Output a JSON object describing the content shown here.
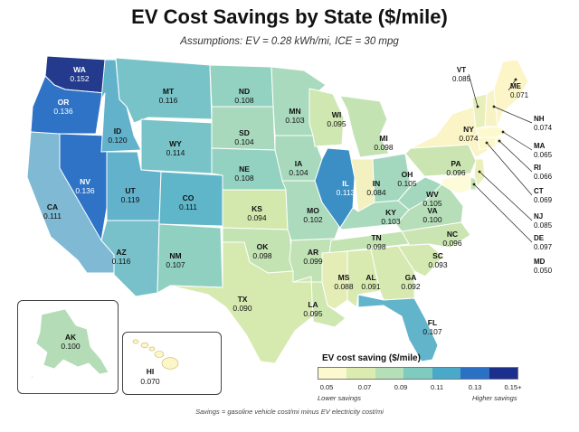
{
  "title": "EV Cost Savings by State ($/mile)",
  "subtitle": "Assumptions: EV = 0.28 kWh/mi, ICE = 30 mpg",
  "footnote": "Savings = gasoline vehicle cost/mi minus EV electricity cost/mi",
  "legend": {
    "title": "EV cost saving ($/mile)",
    "ticks": [
      "0.05",
      "0.07",
      "0.09",
      "0.11",
      "0.13",
      "0.15+"
    ],
    "colors": [
      "#fdf9cf",
      "#dcecb0",
      "#b5dfb6",
      "#7fcbc0",
      "#4aa9c8",
      "#2a70c4",
      "#1b2f8c"
    ],
    "low_label": "Lower savings",
    "high_label": "Higher savings"
  },
  "states": [
    {
      "abbr": "WA",
      "value": "0.152",
      "color": "#233a8d"
    },
    {
      "abbr": "OR",
      "value": "0.136",
      "color": "#2f73c6"
    },
    {
      "abbr": "CA",
      "value": "0.111",
      "color": "#7fb9d3"
    },
    {
      "abbr": "NV",
      "value": "0.136",
      "color": "#2f73c6"
    },
    {
      "abbr": "ID",
      "value": "0.120",
      "color": "#62b2cc"
    },
    {
      "abbr": "MT",
      "value": "0.116",
      "color": "#78c3c8"
    },
    {
      "abbr": "WY",
      "value": "0.114",
      "color": "#78c3c8"
    },
    {
      "abbr": "UT",
      "value": "0.119",
      "color": "#62b2cc"
    },
    {
      "abbr": "AZ",
      "value": "0.116",
      "color": "#78c0ca"
    },
    {
      "abbr": "CO",
      "value": "0.111",
      "color": "#5fb6c8"
    },
    {
      "abbr": "NM",
      "value": "0.107",
      "color": "#90d0c0"
    },
    {
      "abbr": "ND",
      "value": "0.108",
      "color": "#93d2c0"
    },
    {
      "abbr": "SD",
      "value": "0.104",
      "color": "#a8d9bd"
    },
    {
      "abbr": "NE",
      "value": "0.108",
      "color": "#93d2c0"
    },
    {
      "abbr": "KS",
      "value": "0.094",
      "color": "#d3e8ad"
    },
    {
      "abbr": "OK",
      "value": "0.098",
      "color": "#c4e3b3"
    },
    {
      "abbr": "TX",
      "value": "0.090",
      "color": "#d6eab0"
    },
    {
      "abbr": "MN",
      "value": "0.103",
      "color": "#a9dabd"
    },
    {
      "abbr": "IA",
      "value": "0.104",
      "color": "#a8d9bd"
    },
    {
      "abbr": "MO",
      "value": "0.102",
      "color": "#acdabc"
    },
    {
      "abbr": "AR",
      "value": "0.099",
      "color": "#c0e2b5"
    },
    {
      "abbr": "LA",
      "value": "0.095",
      "color": "#cfe7b0"
    },
    {
      "abbr": "WI",
      "value": "0.095",
      "color": "#cfe7b0"
    },
    {
      "abbr": "IL",
      "value": "0.113",
      "color": "#3c8fc4"
    },
    {
      "abbr": "MI",
      "value": "0.098",
      "color": "#c4e3b3"
    },
    {
      "abbr": "IN",
      "value": "0.084",
      "color": "#f3f1c0"
    },
    {
      "abbr": "OH",
      "value": "0.105",
      "color": "#a3d8be"
    },
    {
      "abbr": "KY",
      "value": "0.103",
      "color": "#a9dabd"
    },
    {
      "abbr": "TN",
      "value": "0.098",
      "color": "#c4e3b3"
    },
    {
      "abbr": "MS",
      "value": "0.088",
      "color": "#e4edb6"
    },
    {
      "abbr": "AL",
      "value": "0.091",
      "color": "#d8eab0"
    },
    {
      "abbr": "GA",
      "value": "0.092",
      "color": "#d6e9b1"
    },
    {
      "abbr": "FL",
      "value": "0.107",
      "color": "#62b4cb"
    },
    {
      "abbr": "SC",
      "value": "0.093",
      "color": "#d4e9b1"
    },
    {
      "abbr": "NC",
      "value": "0.096",
      "color": "#cbe5b2"
    },
    {
      "abbr": "VA",
      "value": "0.100",
      "color": "#b6deb8"
    },
    {
      "abbr": "WV",
      "value": "0.105",
      "color": "#a3d8be"
    },
    {
      "abbr": "PA",
      "value": "0.096",
      "color": "#cbe5b2"
    },
    {
      "abbr": "NY",
      "value": "0.074",
      "color": "#fbf4c6"
    },
    {
      "abbr": "VT",
      "value": "0.085",
      "color": "#e8efbc"
    },
    {
      "abbr": "ME",
      "value": "0.071",
      "color": "#fcf5c7"
    },
    {
      "abbr": "NH",
      "value": "0.074",
      "color": "#f8f3c5"
    },
    {
      "abbr": "MA",
      "value": "0.065",
      "color": "#fdf9cf"
    },
    {
      "abbr": "RI",
      "value": "0.066",
      "color": "#fdf9cf"
    },
    {
      "abbr": "CT",
      "value": "0.069",
      "color": "#fdf8cb"
    },
    {
      "abbr": "NJ",
      "value": "0.085",
      "color": "#eaefbb"
    },
    {
      "abbr": "DE",
      "value": "0.097",
      "color": "#c8e4b2"
    },
    {
      "abbr": "MD",
      "value": "0.050",
      "color": "#fefbd8"
    },
    {
      "abbr": "AK",
      "value": "0.100",
      "color": "#b4dcb6"
    },
    {
      "abbr": "HI",
      "value": "0.070",
      "color": "#fdf6c9"
    }
  ]
}
